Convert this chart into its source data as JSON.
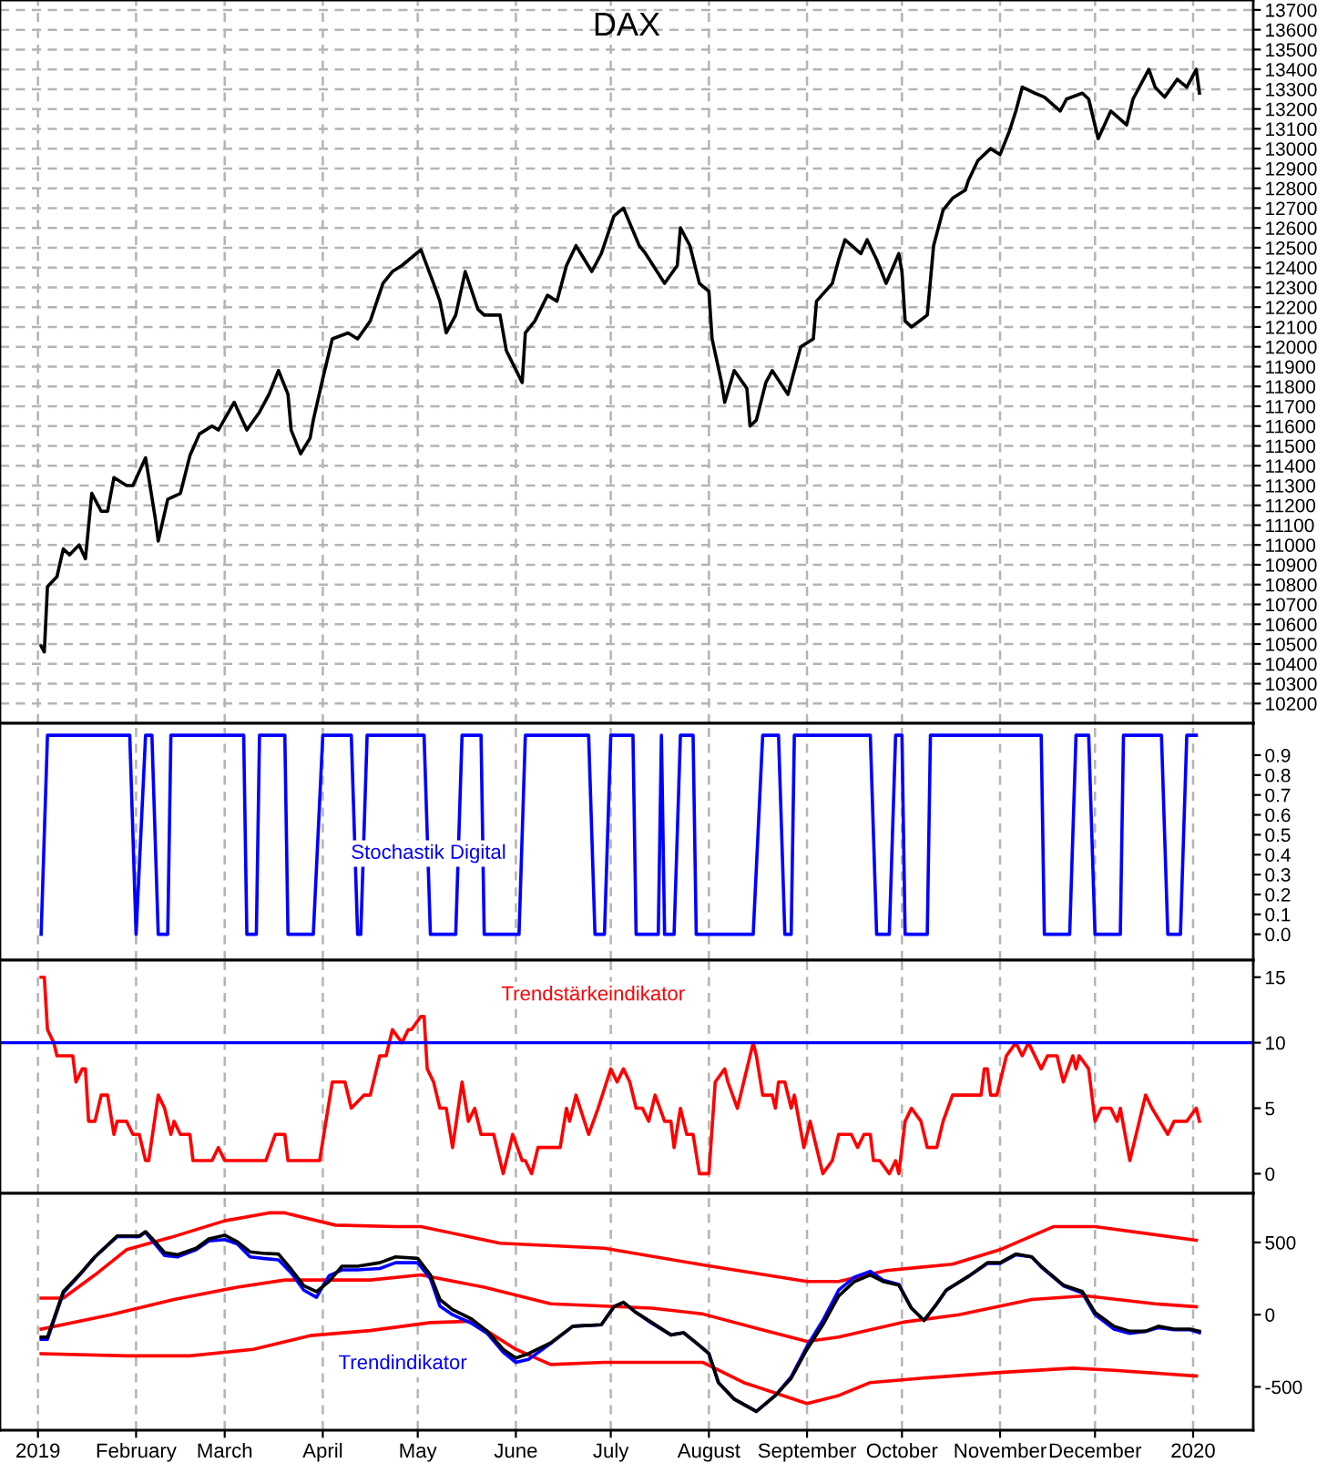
{
  "chart_data": [
    {
      "type": "line",
      "title": "DAX",
      "xlim": [
        "2018-12-20",
        "2020-01-20"
      ],
      "ylim": [
        10100,
        13750
      ],
      "xticks": [
        "2019-01-01",
        "2019-02-01",
        "2019-03-01",
        "2019-04-01",
        "2019-05-01",
        "2019-06-01",
        "2019-07-01",
        "2019-08-01",
        "2019-09-01",
        "2019-10-01",
        "2019-11-01",
        "2019-12-01",
        "2020-01-01"
      ],
      "yticks": [
        10200,
        10300,
        10400,
        10500,
        10600,
        10700,
        10800,
        10900,
        11000,
        11100,
        11200,
        11300,
        11400,
        11500,
        11600,
        11700,
        11800,
        11900,
        12000,
        12100,
        12200,
        12300,
        12400,
        12500,
        12600,
        12700,
        12800,
        12900,
        13000,
        13100,
        13200,
        13300,
        13400,
        13500,
        13600,
        13700
      ],
      "tick_labels": "y",
      "grid": true,
      "legend": false,
      "series": [
        {
          "color": "#000000",
          "x": [
            "2019-01-02",
            "2019-01-03",
            "2019-01-04",
            "2019-01-07",
            "2019-01-09",
            "2019-01-11",
            "2019-01-14",
            "2019-01-16",
            "2019-01-18",
            "2019-01-21",
            "2019-01-23",
            "2019-01-25",
            "2019-01-29",
            "2019-01-31",
            "2019-02-04",
            "2019-02-07",
            "2019-02-08",
            "2019-02-11",
            "2019-02-15",
            "2019-02-18",
            "2019-02-21",
            "2019-02-25",
            "2019-02-27",
            "2019-03-04",
            "2019-03-08",
            "2019-03-12",
            "2019-03-15",
            "2019-03-18",
            "2019-03-21",
            "2019-03-22",
            "2019-03-25",
            "2019-03-28",
            "2019-03-29",
            "2019-04-01",
            "2019-04-04",
            "2019-04-09",
            "2019-04-12",
            "2019-04-16",
            "2019-04-20",
            "2019-04-23",
            "2019-04-26",
            "2019-05-02",
            "2019-05-06",
            "2019-05-08",
            "2019-05-10",
            "2019-05-13",
            "2019-05-16",
            "2019-05-20",
            "2019-05-22",
            "2019-05-27",
            "2019-05-29",
            "2019-06-03",
            "2019-06-04",
            "2019-06-07",
            "2019-06-11",
            "2019-06-14",
            "2019-06-17",
            "2019-06-20",
            "2019-06-25",
            "2019-06-28",
            "2019-07-02",
            "2019-07-05",
            "2019-07-10",
            "2019-07-12",
            "2019-07-18",
            "2019-07-22",
            "2019-07-23",
            "2019-07-26",
            "2019-07-29",
            "2019-08-01",
            "2019-08-02",
            "2019-08-05",
            "2019-08-06",
            "2019-08-09",
            "2019-08-13",
            "2019-08-14",
            "2019-08-16",
            "2019-08-19",
            "2019-08-21",
            "2019-08-26",
            "2019-08-27",
            "2019-08-30",
            "2019-09-03",
            "2019-09-04",
            "2019-09-09",
            "2019-09-11",
            "2019-09-13",
            "2019-09-18",
            "2019-09-20",
            "2019-09-23",
            "2019-09-26",
            "2019-09-30",
            "2019-10-01",
            "2019-10-02",
            "2019-10-04",
            "2019-10-09",
            "2019-10-11",
            "2019-10-14",
            "2019-10-17",
            "2019-10-21",
            "2019-10-22",
            "2019-10-25",
            "2019-10-29",
            "2019-11-01",
            "2019-11-04",
            "2019-11-06",
            "2019-11-08",
            "2019-11-12",
            "2019-11-15",
            "2019-11-20",
            "2019-11-22",
            "2019-11-27",
            "2019-11-29",
            "2019-12-02",
            "2019-12-06",
            "2019-12-11",
            "2019-12-13",
            "2019-12-18",
            "2019-12-20",
            "2019-12-23",
            "2019-12-27",
            "2019-12-30",
            "2020-01-02",
            "2020-01-03"
          ],
          "values": [
            10490,
            10460,
            10790,
            10840,
            10980,
            10950,
            11000,
            10930,
            11260,
            11170,
            11170,
            11340,
            11300,
            11300,
            11440,
            11140,
            11020,
            11230,
            11260,
            11450,
            11560,
            11600,
            11580,
            11720,
            11580,
            11670,
            11760,
            11880,
            11760,
            11580,
            11460,
            11540,
            11630,
            11840,
            12040,
            12070,
            12040,
            12130,
            12320,
            12380,
            12410,
            12490,
            12320,
            12230,
            12070,
            12160,
            12380,
            12190,
            12160,
            12160,
            11980,
            11820,
            12070,
            12130,
            12260,
            12230,
            12410,
            12510,
            12380,
            12470,
            12660,
            12700,
            12510,
            12470,
            12320,
            12410,
            12600,
            12510,
            12320,
            12280,
            12040,
            11820,
            11720,
            11880,
            11790,
            11600,
            11630,
            11820,
            11880,
            11760,
            11820,
            12000,
            12040,
            12230,
            12320,
            12440,
            12540,
            12470,
            12540,
            12440,
            12320,
            12470,
            12380,
            12130,
            12100,
            12160,
            12510,
            12690,
            12750,
            12790,
            12840,
            12940,
            13000,
            12970,
            13090,
            13190,
            13310,
            13280,
            13260,
            13190,
            13250,
            13280,
            13250,
            13050,
            13190,
            13120,
            13250,
            13400,
            13310,
            13260,
            13350,
            13310,
            13400,
            13280
          ]
        }
      ]
    },
    {
      "type": "line",
      "annotations": [
        "Stochastik Digital"
      ],
      "xlim": [
        "2018-12-20",
        "2020-01-20"
      ],
      "ylim": [
        -0.13,
        1.06
      ],
      "xticks": [
        "2019-01-01",
        "2019-02-01",
        "2019-03-01",
        "2019-04-01",
        "2019-05-01",
        "2019-06-01",
        "2019-07-01",
        "2019-08-01",
        "2019-09-01",
        "2019-10-01",
        "2019-11-01",
        "2019-12-01",
        "2020-01-01"
      ],
      "yticks": [
        {
          "value": 0,
          "label": "0.0"
        },
        {
          "value": 0.1,
          "label": "0.1"
        },
        {
          "value": 0.2,
          "label": "0.2"
        },
        {
          "value": 0.3,
          "label": "0.3"
        },
        {
          "value": 0.4,
          "label": "0.4"
        },
        {
          "value": 0.5,
          "label": "0.5"
        },
        {
          "value": 0.6,
          "label": "0.6"
        },
        {
          "value": 0.7,
          "label": "0.7"
        },
        {
          "value": 0.8,
          "label": "0.8"
        },
        {
          "value": 0.9,
          "label": "0.9"
        }
      ],
      "tick_labels": "y",
      "grid": "x",
      "legend": false,
      "series": [
        {
          "color": "#0000ff",
          "x": [
            "2019-01-02",
            "2019-01-04",
            "2019-01-30",
            "2019-02-01",
            "2019-02-04",
            "2019-02-06",
            "2019-02-08",
            "2019-02-11",
            "2019-02-12",
            "2019-03-07",
            "2019-03-08",
            "2019-03-11",
            "2019-03-12",
            "2019-03-20",
            "2019-03-21",
            "2019-03-29",
            "2019-04-01",
            "2019-04-10",
            "2019-04-12",
            "2019-04-13",
            "2019-04-15",
            "2019-05-03",
            "2019-05-05",
            "2019-05-13",
            "2019-05-15",
            "2019-05-21",
            "2019-05-22",
            "2019-06-02",
            "2019-06-04",
            "2019-06-24",
            "2019-06-26",
            "2019-06-29",
            "2019-07-01",
            "2019-07-08",
            "2019-07-09",
            "2019-07-16",
            "2019-07-17",
            "2019-07-18",
            "2019-07-21",
            "2019-07-23",
            "2019-07-27",
            "2019-07-28",
            "2019-08-15",
            "2019-08-18",
            "2019-08-23",
            "2019-08-25",
            "2019-08-27",
            "2019-08-28",
            "2019-09-21",
            "2019-09-23",
            "2019-09-27",
            "2019-09-29",
            "2019-10-01",
            "2019-10-02",
            "2019-10-09",
            "2019-10-10",
            "2019-11-14",
            "2019-11-15",
            "2019-11-23",
            "2019-11-25",
            "2019-11-29",
            "2019-12-01",
            "2019-12-09",
            "2019-12-10",
            "2019-12-22",
            "2019-12-24",
            "2019-12-28",
            "2019-12-30",
            "2020-01-02"
          ],
          "values": [
            0,
            1,
            1,
            0,
            1,
            1,
            0,
            0,
            1,
            1,
            0,
            0,
            1,
            1,
            0,
            0,
            1,
            1,
            0,
            0,
            1,
            1,
            0,
            0,
            1,
            1,
            0,
            0,
            1,
            1,
            0,
            0,
            1,
            1,
            0,
            0,
            1,
            0,
            0,
            1,
            1,
            0,
            0,
            1,
            1,
            0,
            0,
            1,
            1,
            0,
            0,
            1,
            1,
            0,
            0,
            1,
            1,
            0,
            0,
            1,
            1,
            0,
            0,
            1,
            1,
            0,
            0,
            1,
            1
          ]
        }
      ]
    },
    {
      "type": "line",
      "annotations": [
        "Trendstärkeindikator"
      ],
      "xlim": [
        "2018-12-20",
        "2020-01-20"
      ],
      "ylim": [
        -1.5,
        16.3
      ],
      "xticks": [
        "2019-01-01",
        "2019-02-01",
        "2019-03-01",
        "2019-04-01",
        "2019-05-01",
        "2019-06-01",
        "2019-07-01",
        "2019-08-01",
        "2019-09-01",
        "2019-10-01",
        "2019-11-01",
        "2019-12-01",
        "2020-01-01"
      ],
      "yticks": [
        0,
        5,
        10,
        15
      ],
      "tick_labels": "y",
      "grid": "x",
      "legend": false,
      "ref_lines": [
        {
          "axis": "y",
          "value": 10,
          "color": "#0000ff"
        }
      ],
      "series": [
        {
          "color": "#ff0000",
          "x": [
            "2019-01-02",
            "2019-01-03",
            "2019-01-04",
            "2019-01-06",
            "2019-01-07",
            "2019-01-12",
            "2019-01-13",
            "2019-01-15",
            "2019-01-16",
            "2019-01-17",
            "2019-01-19",
            "2019-01-21",
            "2019-01-23",
            "2019-01-25",
            "2019-01-26",
            "2019-01-29",
            "2019-01-31",
            "2019-02-02",
            "2019-02-04",
            "2019-02-05",
            "2019-02-08",
            "2019-02-10",
            "2019-02-12",
            "2019-02-13",
            "2019-02-15",
            "2019-02-18",
            "2019-02-19",
            "2019-02-25",
            "2019-02-27",
            "2019-03-01",
            "2019-03-14",
            "2019-03-17",
            "2019-03-20",
            "2019-03-21",
            "2019-03-31",
            "2019-04-02",
            "2019-04-04",
            "2019-04-08",
            "2019-04-10",
            "2019-04-14",
            "2019-04-16",
            "2019-04-19",
            "2019-04-21",
            "2019-04-23",
            "2019-04-26",
            "2019-04-28",
            "2019-04-29",
            "2019-05-02",
            "2019-05-03",
            "2019-05-04",
            "2019-05-06",
            "2019-05-08",
            "2019-05-10",
            "2019-05-12",
            "2019-05-15",
            "2019-05-17",
            "2019-05-19",
            "2019-05-21",
            "2019-05-25",
            "2019-05-28",
            "2019-05-31",
            "2019-06-03",
            "2019-06-04",
            "2019-06-06",
            "2019-06-08",
            "2019-06-15",
            "2019-06-17",
            "2019-06-18",
            "2019-06-20",
            "2019-06-24",
            "2019-06-27",
            "2019-07-01",
            "2019-07-03",
            "2019-07-05",
            "2019-07-07",
            "2019-07-09",
            "2019-07-11",
            "2019-07-13",
            "2019-07-15",
            "2019-07-18",
            "2019-07-20",
            "2019-07-21",
            "2019-07-23",
            "2019-07-25",
            "2019-07-27",
            "2019-07-29",
            "2019-08-01",
            "2019-08-03",
            "2019-08-06",
            "2019-08-07",
            "2019-08-10",
            "2019-08-12",
            "2019-08-15",
            "2019-08-16",
            "2019-08-18",
            "2019-08-21",
            "2019-08-22",
            "2019-08-23",
            "2019-08-25",
            "2019-08-27",
            "2019-08-28",
            "2019-08-31",
            "2019-09-02",
            "2019-09-04",
            "2019-09-06",
            "2019-09-09",
            "2019-09-11",
            "2019-09-15",
            "2019-09-17",
            "2019-09-19",
            "2019-09-21",
            "2019-09-22",
            "2019-09-24",
            "2019-09-27",
            "2019-09-29",
            "2019-09-30",
            "2019-10-02",
            "2019-10-04",
            "2019-10-07",
            "2019-10-09",
            "2019-10-12",
            "2019-10-14",
            "2019-10-17",
            "2019-10-26",
            "2019-10-27",
            "2019-10-28",
            "2019-10-29",
            "2019-10-31",
            "2019-11-03",
            "2019-11-06",
            "2019-11-08",
            "2019-11-10",
            "2019-11-14",
            "2019-11-16",
            "2019-11-19",
            "2019-11-21",
            "2019-11-24",
            "2019-11-25",
            "2019-11-26",
            "2019-11-29",
            "2019-12-01",
            "2019-12-03",
            "2019-12-06",
            "2019-12-08",
            "2019-12-09",
            "2019-12-12",
            "2019-12-17",
            "2019-12-19",
            "2019-12-24",
            "2019-12-26",
            "2019-12-30",
            "2020-01-02",
            "2020-01-03"
          ],
          "values": [
            15,
            15,
            11,
            10,
            9,
            9,
            7,
            8,
            8,
            4,
            4,
            6,
            6,
            3,
            4,
            4,
            3,
            3,
            1,
            1,
            6,
            5,
            3,
            4,
            3,
            3,
            1,
            1,
            2,
            1,
            1,
            3,
            3,
            1,
            1,
            4,
            7,
            7,
            5,
            6,
            6,
            9,
            9,
            11,
            10,
            11,
            11,
            12,
            12,
            8,
            7,
            5,
            5,
            2,
            7,
            4,
            5,
            3,
            3,
            0,
            3,
            1,
            1,
            0,
            2,
            2,
            5,
            4,
            6,
            3,
            5,
            8,
            7,
            8,
            7,
            5,
            5,
            4,
            6,
            4,
            4,
            2,
            5,
            3,
            3,
            0,
            0,
            7,
            8,
            7,
            5,
            7,
            10,
            9,
            6,
            6,
            5,
            7,
            7,
            5,
            6,
            2,
            4,
            2,
            0,
            1,
            3,
            3,
            2,
            3,
            3,
            1,
            1,
            0,
            1,
            0,
            4,
            5,
            4,
            2,
            2,
            4,
            6,
            6,
            8,
            8,
            6,
            6,
            9,
            10,
            9,
            10,
            8,
            9,
            9,
            7,
            9,
            8,
            9,
            8,
            4,
            5,
            5,
            4,
            5,
            1,
            6,
            5,
            3,
            4,
            4,
            5,
            4
          ]
        }
      ]
    },
    {
      "type": "line",
      "annotations": [
        "Trendindikator"
      ],
      "xlim": [
        "2018-12-20",
        "2020-01-20"
      ],
      "ylim": [
        -800,
        840
      ],
      "xticks": [
        {
          "value": "2019-01-01",
          "label": "2019"
        },
        {
          "value": "2019-02-01",
          "label": "February"
        },
        {
          "value": "2019-03-01",
          "label": "March"
        },
        {
          "value": "2019-04-01",
          "label": "April"
        },
        {
          "value": "2019-05-01",
          "label": "May"
        },
        {
          "value": "2019-06-01",
          "label": "June"
        },
        {
          "value": "2019-07-01",
          "label": "July"
        },
        {
          "value": "2019-08-01",
          "label": "August"
        },
        {
          "value": "2019-09-01",
          "label": "September"
        },
        {
          "value": "2019-10-01",
          "label": "October"
        },
        {
          "value": "2019-11-01",
          "label": "November"
        },
        {
          "value": "2019-12-01",
          "label": "December"
        },
        {
          "value": "2020-01-01",
          "label": "2020"
        }
      ],
      "yticks": [
        {
          "value": -500,
          "label": "-500"
        },
        0,
        500
      ],
      "grid": "x",
      "legend": false,
      "series": [
        {
          "color": "#ff0000",
          "x": [
            "2019-01-02",
            "2019-01-09",
            "2019-01-19",
            "2019-01-29",
            "2019-02-12",
            "2019-03-01",
            "2019-03-15",
            "2019-03-20",
            "2019-04-05",
            "2019-04-24",
            "2019-05-02",
            "2019-05-27",
            "2019-06-29",
            "2019-07-30",
            "2019-09-01",
            "2019-09-11",
            "2019-09-26",
            "2019-10-17",
            "2019-11-01",
            "2019-11-18",
            "2019-12-01",
            "2020-01-02"
          ],
          "values": [
            115,
            115,
            275,
            450,
            535,
            650,
            705,
            705,
            620,
            610,
            610,
            495,
            460,
            345,
            230,
            230,
            305,
            350,
            450,
            610,
            610,
            515
          ]
        },
        {
          "color": "#ff0000",
          "x": [
            "2019-01-02",
            "2019-01-24",
            "2019-02-13",
            "2019-03-05",
            "2019-03-20",
            "2019-04-16",
            "2019-05-02",
            "2019-05-22",
            "2019-06-12",
            "2019-07-14",
            "2019-07-30",
            "2019-08-17",
            "2019-09-01",
            "2019-09-11",
            "2019-10-02",
            "2019-10-19",
            "2019-11-11",
            "2019-11-28",
            "2019-12-20",
            "2020-01-02"
          ],
          "values": [
            -100,
            0,
            105,
            190,
            240,
            240,
            275,
            190,
            75,
            45,
            5,
            -100,
            -185,
            -155,
            -50,
            0,
            105,
            130,
            75,
            55
          ]
        },
        {
          "color": "#ff0000",
          "x": [
            "2019-01-02",
            "2019-01-29",
            "2019-02-18",
            "2019-03-10",
            "2019-03-28",
            "2019-04-16",
            "2019-05-05",
            "2019-05-18",
            "2019-06-01",
            "2019-06-12",
            "2019-06-29",
            "2019-07-30",
            "2019-08-12",
            "2019-09-01",
            "2019-09-11",
            "2019-09-21",
            "2019-10-07",
            "2019-11-01",
            "2019-11-24",
            "2019-12-07",
            "2020-01-02"
          ],
          "values": [
            -270,
            -285,
            -285,
            -240,
            -145,
            -110,
            -55,
            -45,
            -240,
            -345,
            -330,
            -330,
            -470,
            -615,
            -560,
            -470,
            -440,
            -400,
            -370,
            -385,
            -425
          ]
        },
        {
          "color": "#0000ff",
          "x": [
            "2019-01-02",
            "2019-01-04",
            "2019-01-09",
            "2019-01-14",
            "2019-01-19",
            "2019-01-26",
            "2019-02-02",
            "2019-02-04",
            "2019-02-07",
            "2019-02-10",
            "2019-02-14",
            "2019-02-20",
            "2019-02-24",
            "2019-03-01",
            "2019-03-05",
            "2019-03-09",
            "2019-03-13",
            "2019-03-18",
            "2019-03-22",
            "2019-03-26",
            "2019-03-30",
            "2019-04-03",
            "2019-04-07",
            "2019-04-12",
            "2019-04-19",
            "2019-04-24",
            "2019-05-01",
            "2019-05-05",
            "2019-05-08",
            "2019-05-12",
            "2019-05-18",
            "2019-05-23",
            "2019-05-28",
            "2019-06-01",
            "2019-06-05",
            "2019-06-12",
            "2019-06-19",
            "2019-06-28",
            "2019-07-02",
            "2019-07-05",
            "2019-07-09",
            "2019-07-14",
            "2019-07-20",
            "2019-07-24",
            "2019-07-28",
            "2019-08-01",
            "2019-08-04",
            "2019-08-09",
            "2019-08-16",
            "2019-08-22",
            "2019-08-27",
            "2019-09-01",
            "2019-09-06",
            "2019-09-11",
            "2019-09-16",
            "2019-09-21",
            "2019-09-25",
            "2019-09-30",
            "2019-10-04",
            "2019-10-08",
            "2019-10-12",
            "2019-10-15",
            "2019-10-22",
            "2019-10-28",
            "2019-11-01",
            "2019-11-06",
            "2019-11-11",
            "2019-11-14",
            "2019-11-21",
            "2019-11-27",
            "2019-12-01",
            "2019-12-07",
            "2019-12-12",
            "2019-12-17",
            "2019-12-21",
            "2019-12-26",
            "2019-12-31",
            "2020-01-03"
          ],
          "values": [
            -170,
            -170,
            150,
            270,
            400,
            540,
            540,
            570,
            490,
            410,
            400,
            450,
            510,
            520,
            490,
            400,
            390,
            380,
            290,
            170,
            120,
            270,
            310,
            310,
            320,
            360,
            360,
            250,
            60,
            0,
            -60,
            -130,
            -260,
            -330,
            -310,
            -200,
            -80,
            -70,
            55,
            85,
            15,
            -60,
            -140,
            -125,
            -195,
            -270,
            -470,
            -585,
            -670,
            -560,
            -430,
            -220,
            -40,
            170,
            260,
            300,
            240,
            210,
            45,
            -40,
            75,
            170,
            265,
            355,
            355,
            415,
            400,
            330,
            200,
            150,
            0,
            -100,
            -130,
            -115,
            -90,
            -105,
            -105,
            -125
          ]
        },
        {
          "color": "#000000",
          "x": [
            "2019-01-02",
            "2019-01-04",
            "2019-01-09",
            "2019-01-14",
            "2019-01-19",
            "2019-01-26",
            "2019-02-02",
            "2019-02-04",
            "2019-02-07",
            "2019-02-10",
            "2019-02-14",
            "2019-02-20",
            "2019-02-24",
            "2019-03-01",
            "2019-03-05",
            "2019-03-09",
            "2019-03-13",
            "2019-03-18",
            "2019-03-22",
            "2019-03-26",
            "2019-03-30",
            "2019-04-03",
            "2019-04-07",
            "2019-04-12",
            "2019-04-19",
            "2019-04-24",
            "2019-05-01",
            "2019-05-05",
            "2019-05-08",
            "2019-05-12",
            "2019-05-18",
            "2019-05-23",
            "2019-05-28",
            "2019-06-01",
            "2019-06-05",
            "2019-06-12",
            "2019-06-19",
            "2019-06-28",
            "2019-07-02",
            "2019-07-05",
            "2019-07-09",
            "2019-07-14",
            "2019-07-20",
            "2019-07-24",
            "2019-07-28",
            "2019-08-01",
            "2019-08-04",
            "2019-08-09",
            "2019-08-16",
            "2019-08-22",
            "2019-08-27",
            "2019-09-01",
            "2019-09-06",
            "2019-09-11",
            "2019-09-16",
            "2019-09-21",
            "2019-09-25",
            "2019-09-30",
            "2019-10-04",
            "2019-10-08",
            "2019-10-12",
            "2019-10-15",
            "2019-10-22",
            "2019-10-28",
            "2019-11-01",
            "2019-11-06",
            "2019-11-11",
            "2019-11-14",
            "2019-11-21",
            "2019-11-27",
            "2019-12-01",
            "2019-12-07",
            "2019-12-12",
            "2019-12-17",
            "2019-12-21",
            "2019-12-26",
            "2019-12-31",
            "2020-01-03"
          ],
          "values": [
            -155,
            -155,
            160,
            275,
            400,
            545,
            545,
            575,
            505,
            430,
            415,
            460,
            525,
            550,
            505,
            435,
            425,
            420,
            315,
            200,
            160,
            230,
            335,
            335,
            360,
            400,
            390,
            275,
            105,
            35,
            -30,
            -115,
            -240,
            -300,
            -270,
            -195,
            -80,
            -70,
            55,
            85,
            15,
            -55,
            -140,
            -125,
            -195,
            -270,
            -470,
            -585,
            -670,
            -560,
            -440,
            -240,
            -70,
            130,
            230,
            275,
            230,
            205,
            45,
            -40,
            75,
            170,
            265,
            360,
            360,
            420,
            400,
            335,
            205,
            160,
            15,
            -80,
            -115,
            -115,
            -80,
            -100,
            -100,
            -115
          ]
        }
      ]
    }
  ]
}
